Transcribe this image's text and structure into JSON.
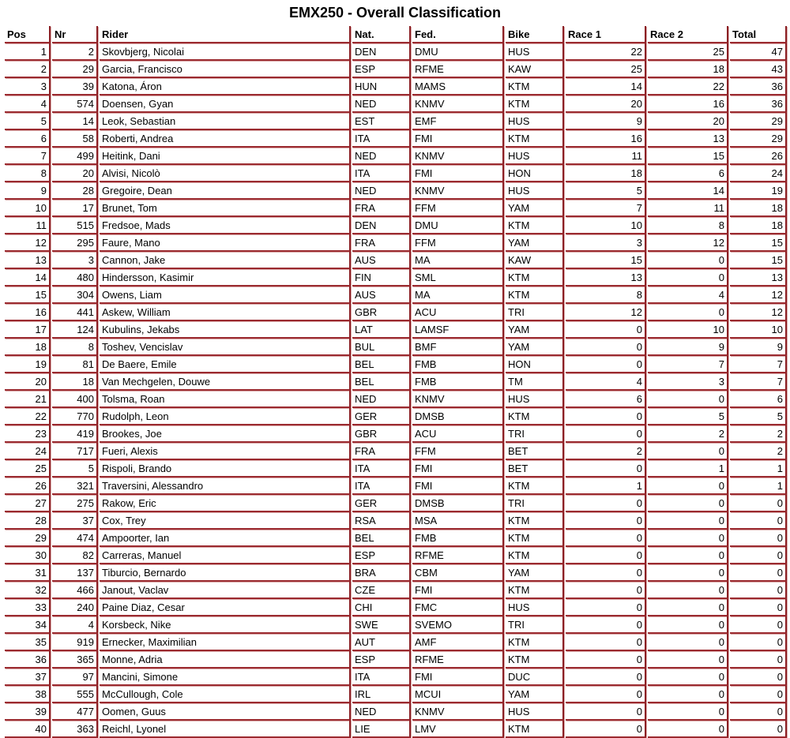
{
  "title": "EMX250 - Overall Classification",
  "columns": [
    "Pos",
    "Nr",
    "Rider",
    "Nat.",
    "Fed.",
    "Bike",
    "Race 1",
    "Race 2",
    "Total"
  ],
  "rows": [
    [
      "1",
      "2",
      "Skovbjerg, Nicolai",
      "DEN",
      "DMU",
      "HUS",
      "22",
      "25",
      "47"
    ],
    [
      "2",
      "29",
      "Garcia, Francisco",
      "ESP",
      "RFME",
      "KAW",
      "25",
      "18",
      "43"
    ],
    [
      "3",
      "39",
      "Katona, Áron",
      "HUN",
      "MAMS",
      "KTM",
      "14",
      "22",
      "36"
    ],
    [
      "4",
      "574",
      "Doensen, Gyan",
      "NED",
      "KNMV",
      "KTM",
      "20",
      "16",
      "36"
    ],
    [
      "5",
      "14",
      "Leok, Sebastian",
      "EST",
      "EMF",
      "HUS",
      "9",
      "20",
      "29"
    ],
    [
      "6",
      "58",
      "Roberti, Andrea",
      "ITA",
      "FMI",
      "KTM",
      "16",
      "13",
      "29"
    ],
    [
      "7",
      "499",
      "Heitink, Dani",
      "NED",
      "KNMV",
      "HUS",
      "11",
      "15",
      "26"
    ],
    [
      "8",
      "20",
      "Alvisi, Nicolò",
      "ITA",
      "FMI",
      "HON",
      "18",
      "6",
      "24"
    ],
    [
      "9",
      "28",
      "Gregoire, Dean",
      "NED",
      "KNMV",
      "HUS",
      "5",
      "14",
      "19"
    ],
    [
      "10",
      "17",
      "Brunet, Tom",
      "FRA",
      "FFM",
      "YAM",
      "7",
      "11",
      "18"
    ],
    [
      "11",
      "515",
      "Fredsoe, Mads",
      "DEN",
      "DMU",
      "KTM",
      "10",
      "8",
      "18"
    ],
    [
      "12",
      "295",
      "Faure, Mano",
      "FRA",
      "FFM",
      "YAM",
      "3",
      "12",
      "15"
    ],
    [
      "13",
      "3",
      "Cannon, Jake",
      "AUS",
      "MA",
      "KAW",
      "15",
      "0",
      "15"
    ],
    [
      "14",
      "480",
      "Hindersson, Kasimir",
      "FIN",
      "SML",
      "KTM",
      "13",
      "0",
      "13"
    ],
    [
      "15",
      "304",
      "Owens, Liam",
      "AUS",
      "MA",
      "KTM",
      "8",
      "4",
      "12"
    ],
    [
      "16",
      "441",
      "Askew, William",
      "GBR",
      "ACU",
      "TRI",
      "12",
      "0",
      "12"
    ],
    [
      "17",
      "124",
      "Kubulins, Jekabs",
      "LAT",
      "LAMSF",
      "YAM",
      "0",
      "10",
      "10"
    ],
    [
      "18",
      "8",
      "Toshev, Vencislav",
      "BUL",
      "BMF",
      "YAM",
      "0",
      "9",
      "9"
    ],
    [
      "19",
      "81",
      "De Baere, Emile",
      "BEL",
      "FMB",
      "HON",
      "0",
      "7",
      "7"
    ],
    [
      "20",
      "18",
      "Van Mechgelen, Douwe",
      "BEL",
      "FMB",
      "TM",
      "4",
      "3",
      "7"
    ],
    [
      "21",
      "400",
      "Tolsma, Roan",
      "NED",
      "KNMV",
      "HUS",
      "6",
      "0",
      "6"
    ],
    [
      "22",
      "770",
      "Rudolph, Leon",
      "GER",
      "DMSB",
      "KTM",
      "0",
      "5",
      "5"
    ],
    [
      "23",
      "419",
      "Brookes, Joe",
      "GBR",
      "ACU",
      "TRI",
      "0",
      "2",
      "2"
    ],
    [
      "24",
      "717",
      "Fueri, Alexis",
      "FRA",
      "FFM",
      "BET",
      "2",
      "0",
      "2"
    ],
    [
      "25",
      "5",
      "Rispoli, Brando",
      "ITA",
      "FMI",
      "BET",
      "0",
      "1",
      "1"
    ],
    [
      "26",
      "321",
      "Traversini, Alessandro",
      "ITA",
      "FMI",
      "KTM",
      "1",
      "0",
      "1"
    ],
    [
      "27",
      "275",
      "Rakow, Eric",
      "GER",
      "DMSB",
      "TRI",
      "0",
      "0",
      "0"
    ],
    [
      "28",
      "37",
      "Cox, Trey",
      "RSA",
      "MSA",
      "KTM",
      "0",
      "0",
      "0"
    ],
    [
      "29",
      "474",
      "Ampoorter, Ian",
      "BEL",
      "FMB",
      "KTM",
      "0",
      "0",
      "0"
    ],
    [
      "30",
      "82",
      "Carreras, Manuel",
      "ESP",
      "RFME",
      "KTM",
      "0",
      "0",
      "0"
    ],
    [
      "31",
      "137",
      "Tiburcio, Bernardo",
      "BRA",
      "CBM",
      "YAM",
      "0",
      "0",
      "0"
    ],
    [
      "32",
      "466",
      "Janout, Vaclav",
      "CZE",
      "FMI",
      "KTM",
      "0",
      "0",
      "0"
    ],
    [
      "33",
      "240",
      "Paine Diaz, Cesar",
      "CHI",
      "FMC",
      "HUS",
      "0",
      "0",
      "0"
    ],
    [
      "34",
      "4",
      "Korsbeck, Nike",
      "SWE",
      "SVEMO",
      "TRI",
      "0",
      "0",
      "0"
    ],
    [
      "35",
      "919",
      "Ernecker, Maximilian",
      "AUT",
      "AMF",
      "KTM",
      "0",
      "0",
      "0"
    ],
    [
      "36",
      "365",
      "Monne, Adria",
      "ESP",
      "RFME",
      "KTM",
      "0",
      "0",
      "0"
    ],
    [
      "37",
      "97",
      "Mancini, Simone",
      "ITA",
      "FMI",
      "DUC",
      "0",
      "0",
      "0"
    ],
    [
      "38",
      "555",
      "McCullough, Cole",
      "IRL",
      "MCUI",
      "YAM",
      "0",
      "0",
      "0"
    ],
    [
      "39",
      "477",
      "Oomen, Guus",
      "NED",
      "KNMV",
      "HUS",
      "0",
      "0",
      "0"
    ],
    [
      "40",
      "363",
      "Reichl, Lyonel",
      "LIE",
      "LMV",
      "KTM",
      "0",
      "0",
      "0"
    ]
  ],
  "colors": {
    "border": "#8b1f24"
  }
}
